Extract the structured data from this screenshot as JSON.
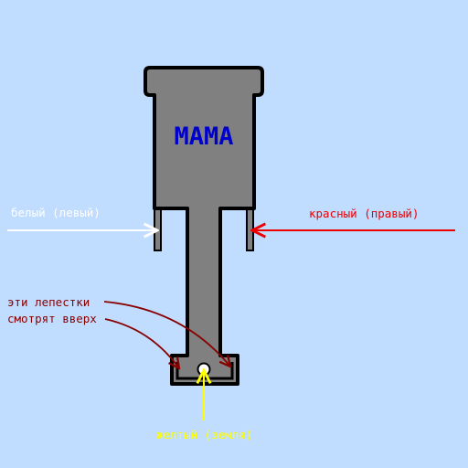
{
  "title": "МАМА",
  "labels": {
    "white": "белый (левый)",
    "red": "красный (правый)",
    "petals_line1": "эти лепестки",
    "petals_line2": "смотрят вверх",
    "yellow": "желтый (земля)"
  },
  "colors": {
    "background": "#c0dcff",
    "body": "#808080",
    "outline": "#000000",
    "title": "#0000cc",
    "white_arrow": "#ffffff",
    "red_arrow": "#ee0000",
    "petal_arrows": "#880000",
    "ground_arrow": "#ffff00"
  }
}
